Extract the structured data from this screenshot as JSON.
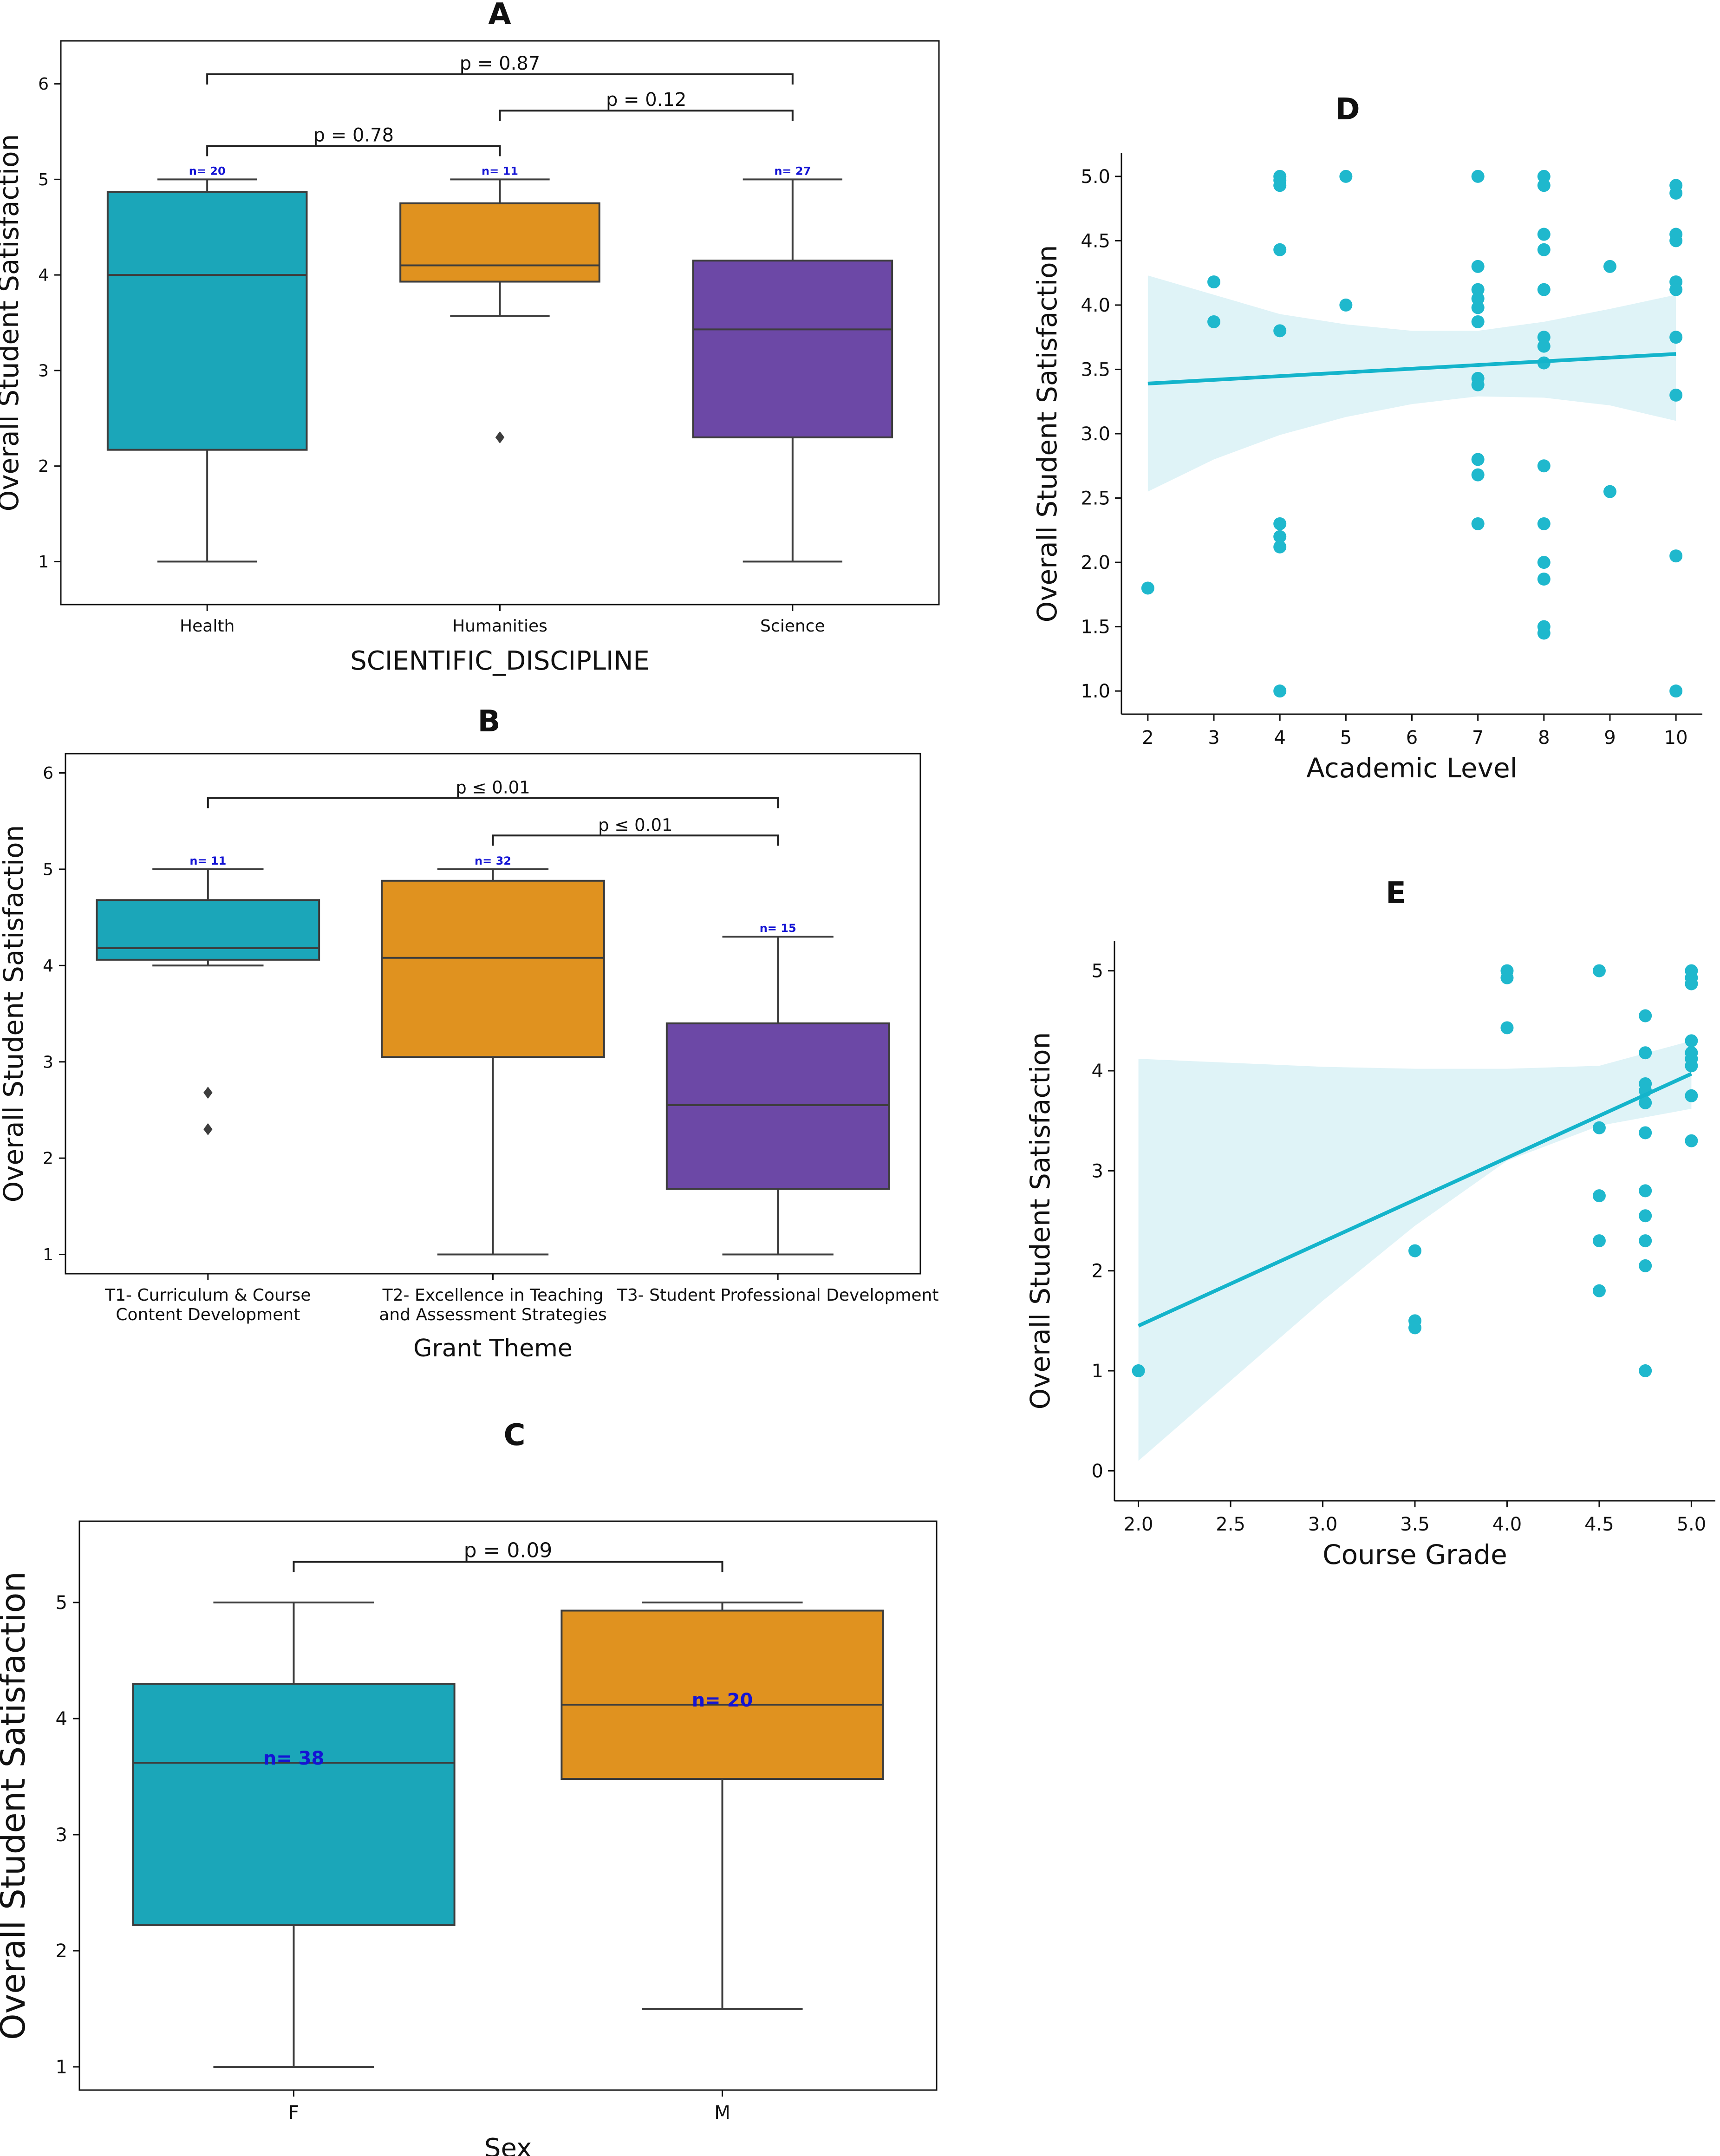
{
  "chart_data": [
    {
      "id": "A",
      "type": "box",
      "panel_label": "A",
      "xlabel": "SCIENTIFIC_DISCIPLINE",
      "ylabel": "Overall  Student Satisfaction",
      "ylim": [
        0.55,
        6.45
      ],
      "yticks": [
        1,
        2,
        3,
        4,
        5,
        6
      ],
      "categories": [
        "Health",
        "Humanities",
        "Science"
      ],
      "colors": [
        "#1ba6b9",
        "#e0921f",
        "#6c48a6"
      ],
      "boxes": [
        {
          "whislo": 1.0,
          "q1": 2.17,
          "med": 4.0,
          "q3": 4.87,
          "whishi": 5.0,
          "fliers": [],
          "n": "n= 20"
        },
        {
          "whislo": 3.57,
          "q1": 3.93,
          "med": 4.1,
          "q3": 4.75,
          "whishi": 5.0,
          "fliers": [
            2.3
          ],
          "n": "n= 11"
        },
        {
          "whislo": 1.0,
          "q1": 2.3,
          "med": 3.43,
          "q3": 4.15,
          "whishi": 5.0,
          "fliers": [],
          "n": "n= 27"
        }
      ],
      "brackets": [
        {
          "from": 0,
          "to": 1,
          "y": 5.35,
          "label": "p = 0.78"
        },
        {
          "from": 1,
          "to": 2,
          "y": 5.72,
          "label": "p = 0.12"
        },
        {
          "from": 0,
          "to": 2,
          "y": 6.1,
          "label": "p = 0.87"
        }
      ]
    },
    {
      "id": "B",
      "type": "box",
      "panel_label": "B",
      "xlabel": "Grant Theme",
      "ylabel": "Overall  Student Satisfaction",
      "ylim": [
        0.8,
        6.2
      ],
      "yticks": [
        1,
        2,
        3,
        4,
        5,
        6
      ],
      "categories": [
        "T1- Curriculum & Course\nContent Development",
        "T2- Excellence in Teaching\nand Assessment Strategies",
        "T3- Student Professional Development"
      ],
      "colors": [
        "#1ba6b9",
        "#e0921f",
        "#6c48a6"
      ],
      "boxes": [
        {
          "whislo": 4.0,
          "q1": 4.06,
          "med": 4.18,
          "q3": 4.68,
          "whishi": 5.0,
          "fliers": [
            2.68,
            2.3
          ],
          "n": "n= 11"
        },
        {
          "whislo": 1.0,
          "q1": 3.05,
          "med": 4.08,
          "q3": 4.88,
          "whishi": 5.0,
          "fliers": [],
          "n": "n= 32"
        },
        {
          "whislo": 1.0,
          "q1": 1.68,
          "med": 2.55,
          "q3": 3.4,
          "whishi": 4.3,
          "fliers": [],
          "n": "n= 15"
        }
      ],
      "brackets": [
        {
          "from": 1,
          "to": 2,
          "y": 5.35,
          "label": "p ≤ 0.01"
        },
        {
          "from": 0,
          "to": 2,
          "y": 5.74,
          "label": "p ≤ 0.01"
        }
      ]
    },
    {
      "id": "C",
      "type": "box",
      "panel_label": "C",
      "xlabel": "Sex",
      "ylabel": "Overall  Student Satisfaction",
      "ylim": [
        0.8,
        5.7
      ],
      "yticks": [
        1,
        2,
        3,
        4,
        5
      ],
      "categories": [
        "F",
        "M"
      ],
      "colors": [
        "#1ba6b9",
        "#e0921f"
      ],
      "boxes": [
        {
          "whislo": 1.0,
          "q1": 2.22,
          "med": 3.62,
          "q3": 4.3,
          "whishi": 5.0,
          "fliers": [],
          "n": "n= 38",
          "n_pos": "median"
        },
        {
          "whislo": 1.5,
          "q1": 3.48,
          "med": 4.12,
          "q3": 4.93,
          "whishi": 5.0,
          "fliers": [],
          "n": "n= 20",
          "n_pos": "median"
        }
      ],
      "brackets": [
        {
          "from": 0,
          "to": 1,
          "y": 5.35,
          "label": "p = 0.09"
        }
      ]
    },
    {
      "id": "D",
      "type": "scatter",
      "panel_label": "D",
      "xlabel": "Academic Level",
      "ylabel": "Overall  Student Satisfaction",
      "xlim": [
        1.6,
        10.4
      ],
      "ylim": [
        0.82,
        5.18
      ],
      "xticks": [
        2,
        3,
        4,
        5,
        6,
        7,
        8,
        9,
        10
      ],
      "yticks": [
        1.0,
        1.5,
        2.0,
        2.5,
        3.0,
        3.5,
        4.0,
        4.5,
        5.0
      ],
      "tick_decimals": 1,
      "color": "#1fb8cd",
      "band_color": "#dff3f7",
      "points": [
        [
          2,
          1.8
        ],
        [
          3,
          4.18
        ],
        [
          3,
          3.87
        ],
        [
          4,
          5.0
        ],
        [
          4,
          4.97
        ],
        [
          4,
          4.93
        ],
        [
          4,
          4.43
        ],
        [
          4,
          3.8
        ],
        [
          4,
          2.3
        ],
        [
          4,
          2.2
        ],
        [
          4,
          2.12
        ],
        [
          4,
          1.0
        ],
        [
          5,
          5.0
        ],
        [
          5,
          4.0
        ],
        [
          7,
          5.0
        ],
        [
          7,
          4.3
        ],
        [
          7,
          4.12
        ],
        [
          7,
          4.05
        ],
        [
          7,
          3.98
        ],
        [
          7,
          3.87
        ],
        [
          7,
          3.43
        ],
        [
          7,
          3.38
        ],
        [
          7,
          2.8
        ],
        [
          7,
          2.68
        ],
        [
          7,
          2.3
        ],
        [
          8,
          5.0
        ],
        [
          8,
          4.93
        ],
        [
          8,
          4.55
        ],
        [
          8,
          4.43
        ],
        [
          8,
          4.12
        ],
        [
          8,
          3.75
        ],
        [
          8,
          3.68
        ],
        [
          8,
          3.55
        ],
        [
          8,
          2.75
        ],
        [
          8,
          2.3
        ],
        [
          8,
          2.0
        ],
        [
          8,
          1.87
        ],
        [
          8,
          1.5
        ],
        [
          8,
          1.45
        ],
        [
          9,
          4.3
        ],
        [
          9,
          2.55
        ],
        [
          10,
          4.93
        ],
        [
          10,
          4.87
        ],
        [
          10,
          4.55
        ],
        [
          10,
          4.5
        ],
        [
          10,
          4.18
        ],
        [
          10,
          4.12
        ],
        [
          10,
          3.75
        ],
        [
          10,
          3.3
        ],
        [
          10,
          2.05
        ],
        [
          10,
          1.0
        ]
      ],
      "regression": {
        "x": [
          2,
          10
        ],
        "y": [
          3.39,
          3.62
        ]
      },
      "ci_band": {
        "x": [
          2,
          3,
          4,
          5,
          6,
          7,
          8,
          9,
          10
        ],
        "upper": [
          4.23,
          4.08,
          3.93,
          3.85,
          3.8,
          3.8,
          3.87,
          3.97,
          4.08
        ],
        "lower": [
          2.55,
          2.8,
          2.99,
          3.13,
          3.23,
          3.29,
          3.28,
          3.22,
          3.1
        ]
      }
    },
    {
      "id": "E",
      "type": "scatter",
      "panel_label": "E",
      "xlabel": "Course Grade",
      "ylabel": "Overall  Student Satisfaction",
      "xlim": [
        1.87,
        5.13
      ],
      "ylim": [
        -0.3,
        5.3
      ],
      "xticks": [
        2.0,
        2.5,
        3.0,
        3.5,
        4.0,
        4.5,
        5.0
      ],
      "yticks": [
        0,
        1,
        2,
        3,
        4,
        5
      ],
      "tick_decimals_x": 1,
      "color": "#1fb8cd",
      "band_color": "#dff3f7",
      "points": [
        [
          2.0,
          1.0
        ],
        [
          3.5,
          2.2
        ],
        [
          3.5,
          1.5
        ],
        [
          3.5,
          1.43
        ],
        [
          4.0,
          5.0
        ],
        [
          4.0,
          4.93
        ],
        [
          4.0,
          4.43
        ],
        [
          4.5,
          5.0
        ],
        [
          4.5,
          3.43
        ],
        [
          4.5,
          2.75
        ],
        [
          4.5,
          2.3
        ],
        [
          4.5,
          1.8
        ],
        [
          4.75,
          4.55
        ],
        [
          4.75,
          4.18
        ],
        [
          4.75,
          3.87
        ],
        [
          4.75,
          3.8
        ],
        [
          4.75,
          3.68
        ],
        [
          4.75,
          3.38
        ],
        [
          4.75,
          2.8
        ],
        [
          4.75,
          2.55
        ],
        [
          4.75,
          2.3
        ],
        [
          4.75,
          2.05
        ],
        [
          4.75,
          1.0
        ],
        [
          5.0,
          5.0
        ],
        [
          5.0,
          4.93
        ],
        [
          5.0,
          4.87
        ],
        [
          5.0,
          4.3
        ],
        [
          5.0,
          4.18
        ],
        [
          5.0,
          4.12
        ],
        [
          5.0,
          4.05
        ],
        [
          5.0,
          3.75
        ],
        [
          5.0,
          3.3
        ]
      ],
      "regression": {
        "x": [
          2.0,
          5.0
        ],
        "y": [
          1.45,
          3.97
        ]
      },
      "ci_band": {
        "x": [
          2.0,
          2.5,
          3.0,
          3.5,
          4.0,
          4.5,
          5.0
        ],
        "upper": [
          4.12,
          4.08,
          4.04,
          4.02,
          4.02,
          4.05,
          4.3
        ],
        "lower": [
          0.1,
          0.9,
          1.7,
          2.45,
          3.1,
          3.45,
          3.62
        ]
      }
    }
  ]
}
